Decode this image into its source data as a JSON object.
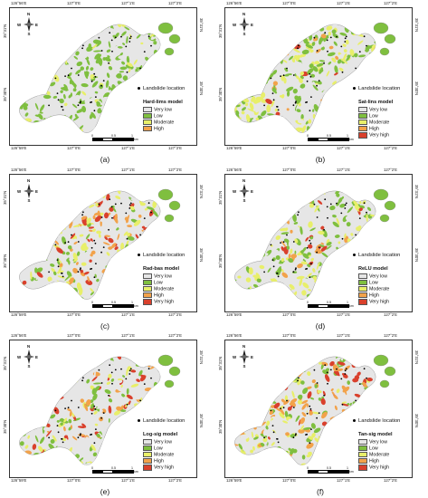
{
  "figure": {
    "coordinates": {
      "lon_top": [
        "126°56'E",
        "127°0'E",
        "127°1'E",
        "127°2'E"
      ],
      "lon_bottom": [
        "126°59'E",
        "127°0'E",
        "127°1'E",
        "127°2'E"
      ],
      "lat_left": [
        "35°31'N",
        "35°30'N"
      ],
      "lat_right": [
        "35°31'N",
        "35°30'N"
      ]
    },
    "north_arrow": {
      "n": "N",
      "s": "S",
      "e": "E",
      "w": "W"
    },
    "landslide_label": "Landslide location",
    "legend_classes": [
      {
        "label": "Very low",
        "color": "#e6e6e6"
      },
      {
        "label": "Low",
        "color": "#7fbf3f"
      },
      {
        "label": "Moderate",
        "color": "#e8ef6a"
      },
      {
        "label": "High",
        "color": "#f2a24a"
      },
      {
        "label": "Very high",
        "color": "#d9402c"
      }
    ],
    "scale": {
      "labels": [
        "0",
        "0.5",
        "1"
      ],
      "unit": "km"
    },
    "panels": [
      {
        "label": "(a)",
        "model": "Hard-lims model",
        "num_classes": 4
      },
      {
        "label": "(b)",
        "model": "Sat-lins model",
        "num_classes": 5
      },
      {
        "label": "(c)",
        "model": "Rad-bas model",
        "num_classes": 5
      },
      {
        "label": "(d)",
        "model": "ReLU model",
        "num_classes": 5
      },
      {
        "label": "(e)",
        "model": "Log-sig model",
        "num_classes": 5
      },
      {
        "label": "(f)",
        "model": "Tan-sig model",
        "num_classes": 5
      }
    ]
  }
}
